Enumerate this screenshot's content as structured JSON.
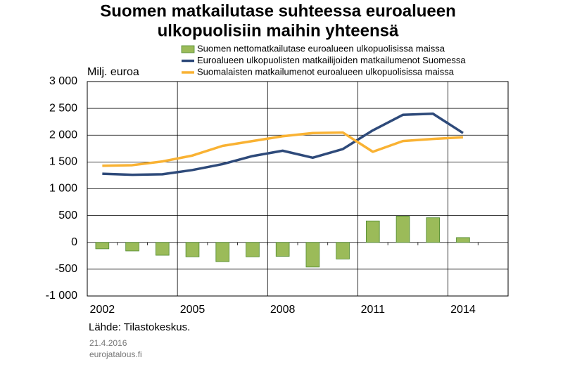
{
  "chart_data": {
    "type": "bar",
    "title": [
      "Suomen matkailutase suhteessa euroalueen",
      "ulkopuolisiin maihin yhteensä"
    ],
    "y_label": "Milj. euroa",
    "source": "Lähde: Tilastokeskus.",
    "date": "21.4.2016",
    "site": "eurojatalous.fi",
    "categories": [
      "2002",
      null,
      null,
      "2005",
      null,
      null,
      "2008",
      null,
      null,
      "2011",
      null,
      null,
      "2014",
      null
    ],
    "series": [
      {
        "name": "Suomen nettomatkailutase euroalueen ulkopuolisissa maissa",
        "type": "bar",
        "color": "#9bbb59",
        "values": [
          -120,
          -160,
          -240,
          -270,
          -360,
          -270,
          -260,
          -460,
          -310,
          400,
          490,
          460,
          90,
          null
        ]
      },
      {
        "name": "Euroalueen ulkopuolisten matkailijoiden matkailumenot Suomessa",
        "type": "line",
        "color": "#2e4a7a",
        "values": [
          1280,
          1260,
          1270,
          1350,
          1460,
          1610,
          1710,
          1580,
          1740,
          2090,
          2380,
          2400,
          2040,
          null
        ]
      },
      {
        "name": "Suomalaisten matkailumenot euroalueen ulkopuolisissa maissa",
        "type": "line",
        "color": "#f9b233",
        "values": [
          1430,
          1440,
          1510,
          1620,
          1800,
          1890,
          1980,
          2040,
          2050,
          1690,
          1890,
          1930,
          1960,
          null
        ]
      }
    ],
    "ylim": [
      -1000,
      3000
    ],
    "yticks": [
      {
        "value": -1000,
        "label": "-1 000"
      },
      -500,
      0,
      500,
      {
        "value": 1000,
        "label": "1 000"
      },
      {
        "value": 1500,
        "label": "1 500"
      },
      {
        "value": 2000,
        "label": "2 000"
      },
      {
        "value": 2500,
        "label": "2 500"
      },
      {
        "value": 3000,
        "label": "3 000"
      }
    ],
    "grid": true
  }
}
